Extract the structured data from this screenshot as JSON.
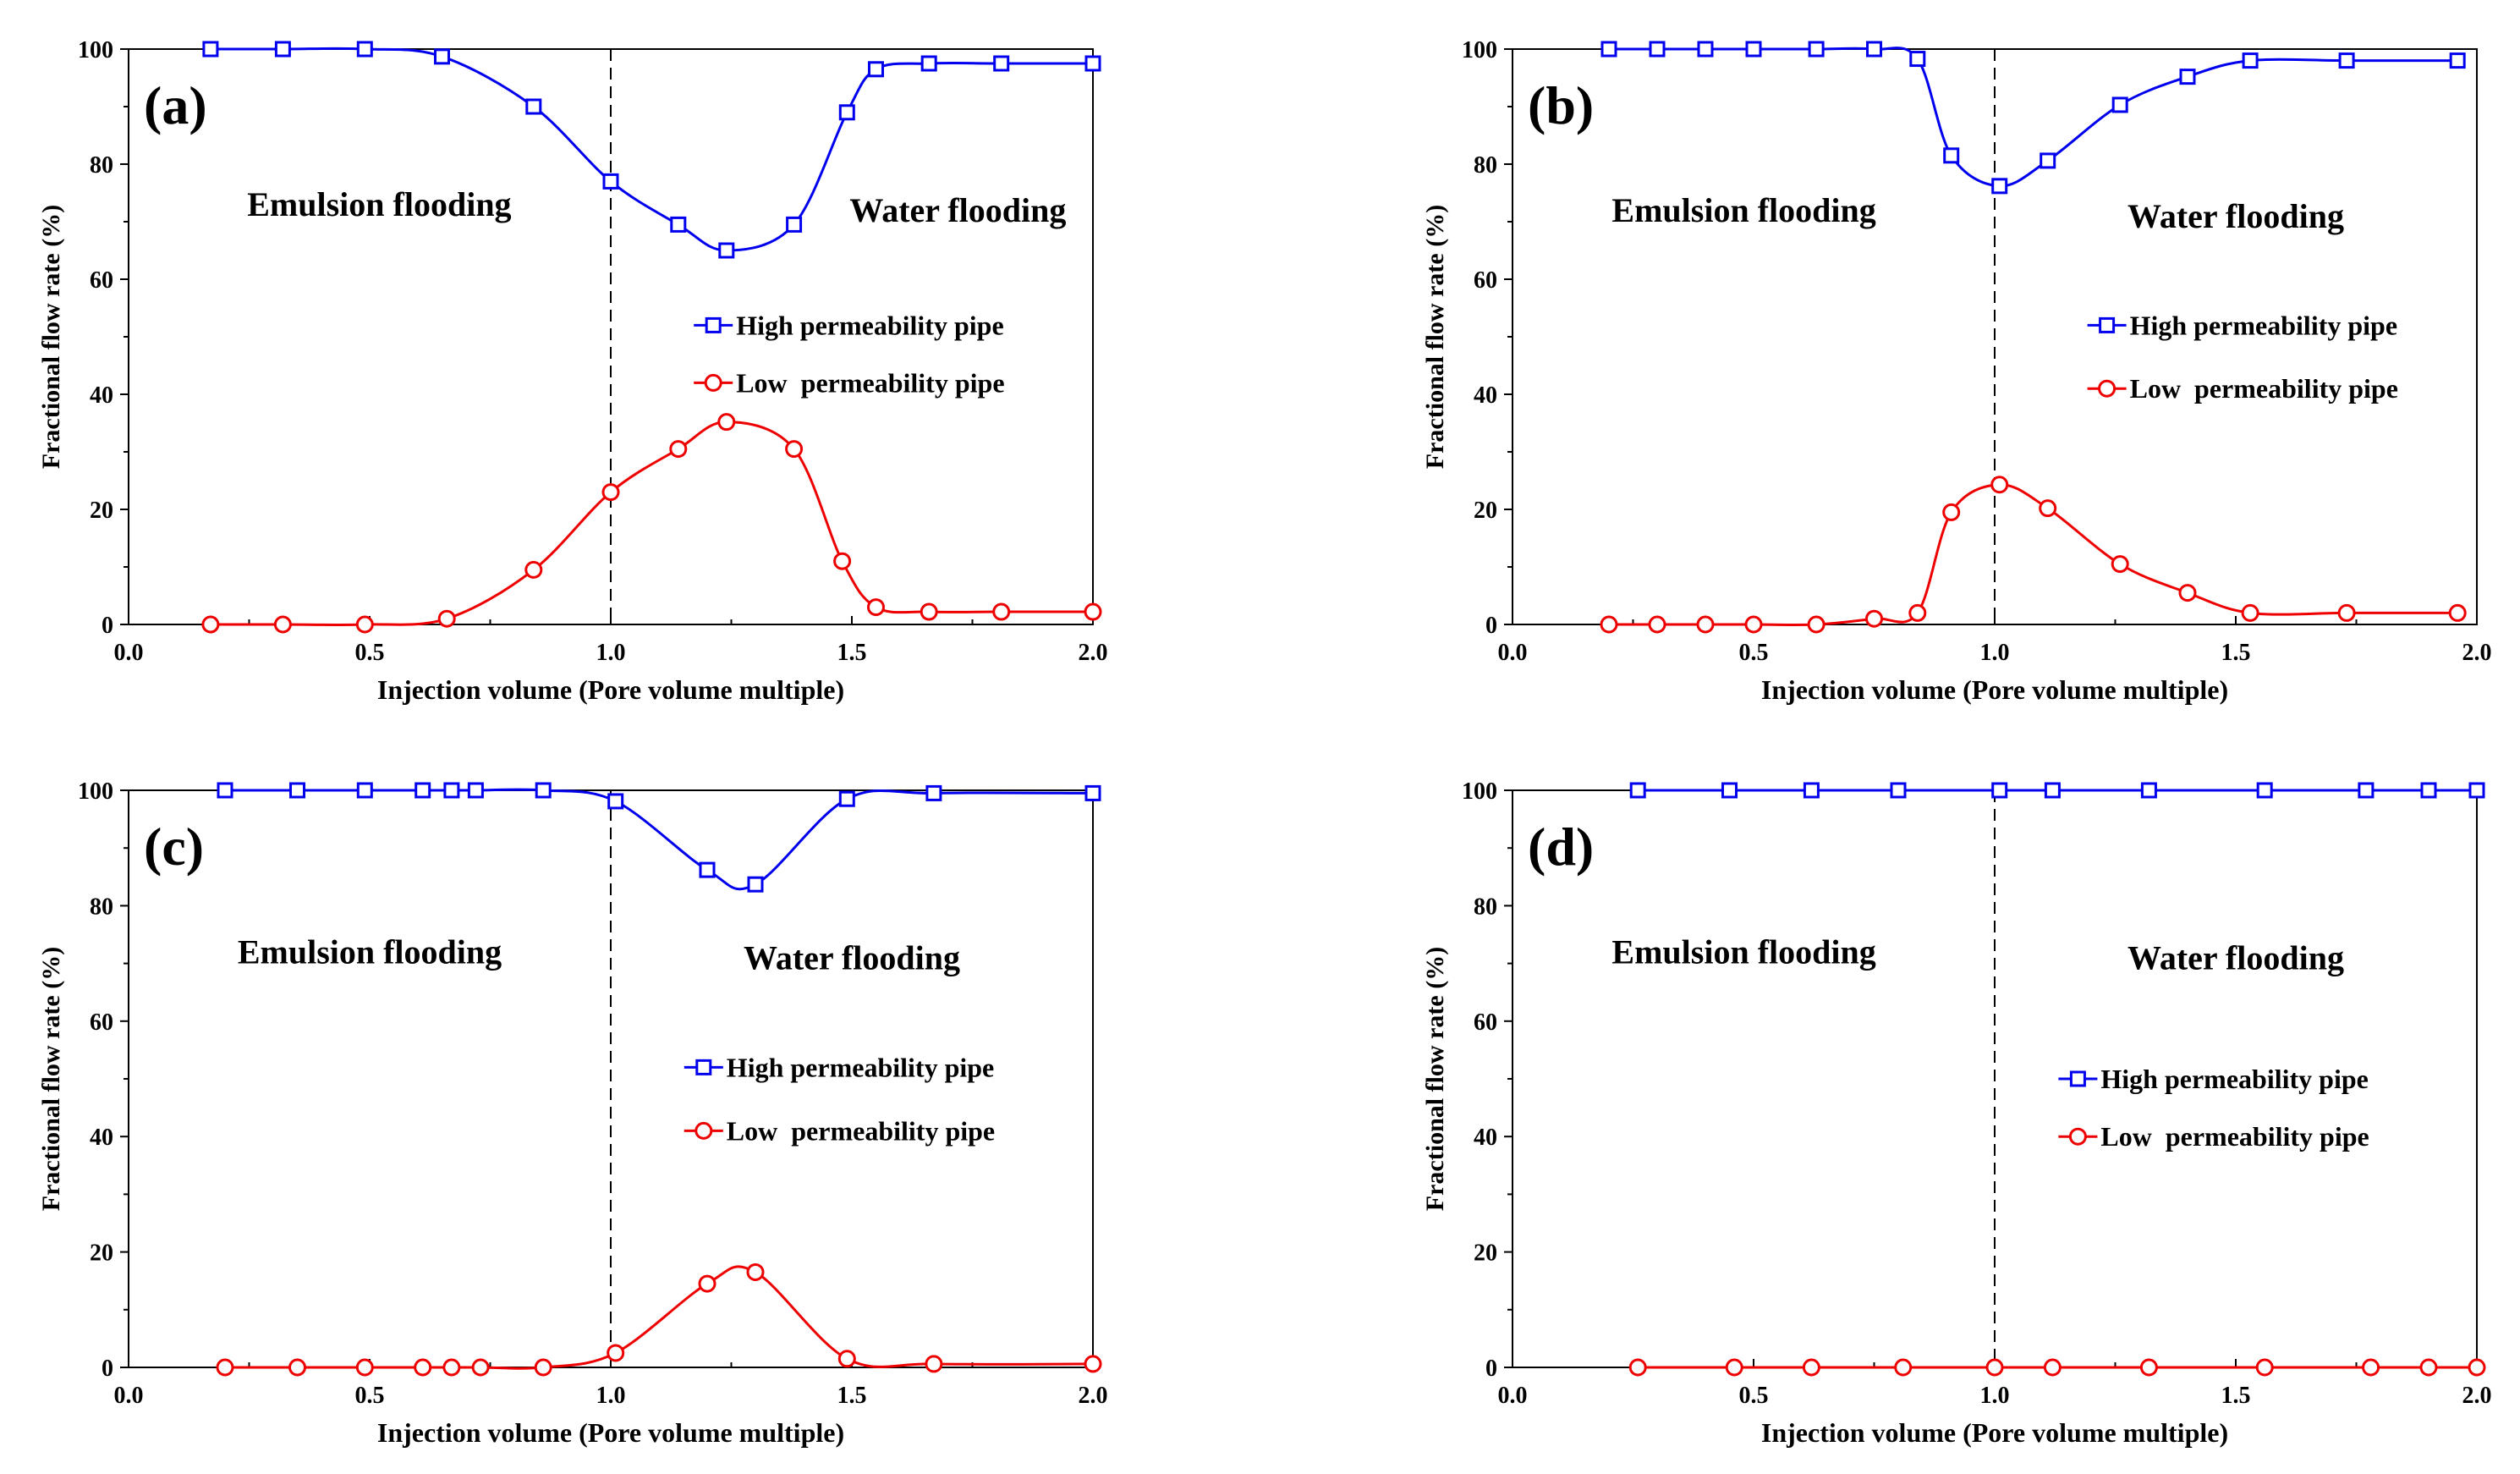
{
  "colors": {
    "high": "#0000ee",
    "low": "#ee0000",
    "axis": "#000000"
  },
  "chart_data": [
    {
      "type": "line",
      "panel_label": "(a)",
      "xlabel": "Injection volume (Pore volume multiple)",
      "ylabel": "Fractional flow rate (%)",
      "xlim": [
        0,
        2
      ],
      "ylim": [
        0,
        100
      ],
      "xticks": [
        "0.0",
        "0.5",
        "1.0",
        "1.5",
        "2.0"
      ],
      "yticks": [
        "0",
        "20",
        "40",
        "60",
        "80",
        "100"
      ],
      "divider_x": 1.0,
      "region_left": "Emulsion flooding",
      "region_right": "Water flooding",
      "legend": [
        "High permeability pipe",
        "Low  permeability pipe"
      ],
      "series": [
        {
          "name": "High permeability pipe",
          "marker": "square",
          "x": [
            0.17,
            0.32,
            0.49,
            0.65,
            0.84,
            1.0,
            1.14,
            1.24,
            1.38,
            1.49,
            1.55,
            1.66,
            1.81,
            2.0
          ],
          "y": [
            100,
            100,
            100,
            98.7,
            90,
            77,
            69.5,
            65,
            69.5,
            89,
            96.5,
            97.5,
            97.5,
            97.5
          ]
        },
        {
          "name": "Low  permeability pipe",
          "marker": "circle",
          "x": [
            0.17,
            0.32,
            0.49,
            0.66,
            0.84,
            1.0,
            1.14,
            1.24,
            1.38,
            1.48,
            1.55,
            1.66,
            1.81,
            2.0
          ],
          "y": [
            0,
            0,
            0,
            1,
            9.5,
            23,
            30.5,
            35.2,
            30.5,
            11,
            3,
            2.2,
            2.2,
            2.2
          ]
        }
      ]
    },
    {
      "type": "line",
      "panel_label": "(b)",
      "xlabel": "Injection volume (Pore volume multiple)",
      "ylabel": "Fractional flow rate (%)",
      "xlim": [
        0,
        2
      ],
      "ylim": [
        0,
        100
      ],
      "xticks": [
        "0.0",
        "0.5",
        "1.0",
        "1.5",
        "2.0"
      ],
      "yticks": [
        "0",
        "20",
        "40",
        "60",
        "80",
        "100"
      ],
      "divider_x": 1.0,
      "region_left": "Emulsion flooding",
      "region_right": "Water flooding",
      "legend": [
        "High permeability pipe",
        "Low  permeability pipe"
      ],
      "series": [
        {
          "name": "High permeability pipe",
          "marker": "square",
          "x": [
            0.2,
            0.3,
            0.4,
            0.5,
            0.63,
            0.75,
            0.84,
            0.91,
            1.01,
            1.11,
            1.26,
            1.4,
            1.53,
            1.73,
            1.96
          ],
          "y": [
            100,
            100,
            100,
            100,
            100,
            100,
            98.3,
            81.5,
            76.2,
            80.6,
            90.3,
            95.2,
            98,
            98,
            98
          ]
        },
        {
          "name": "Low  permeability pipe",
          "marker": "circle",
          "x": [
            0.2,
            0.3,
            0.4,
            0.5,
            0.63,
            0.75,
            0.84,
            0.91,
            1.01,
            1.11,
            1.26,
            1.4,
            1.53,
            1.73,
            1.96
          ],
          "y": [
            0,
            0,
            0,
            0,
            0,
            1,
            2,
            19.5,
            24.3,
            20.2,
            10.5,
            5.5,
            2,
            2,
            2
          ]
        }
      ]
    },
    {
      "type": "line",
      "panel_label": "(c)",
      "xlabel": "Injection volume (Pore volume multiple)",
      "ylabel": "Fractional flow rate (%)",
      "xlim": [
        0,
        2
      ],
      "ylim": [
        0,
        100
      ],
      "xticks": [
        "0.0",
        "0.5",
        "1.0",
        "1.5",
        "2.0"
      ],
      "yticks": [
        "0",
        "20",
        "40",
        "60",
        "80",
        "100"
      ],
      "divider_x": 1.0,
      "region_left": "Emulsion flooding",
      "region_right": "Water flooding",
      "legend": [
        "High permeability pipe",
        "Low  permeability pipe"
      ],
      "series": [
        {
          "name": "High permeability pipe",
          "marker": "square",
          "x": [
            0.2,
            0.35,
            0.49,
            0.61,
            0.67,
            0.72,
            0.86,
            1.01,
            1.2,
            1.3,
            1.49,
            1.67,
            2.0
          ],
          "y": [
            100,
            100,
            100,
            100,
            100,
            100,
            100,
            98.1,
            86.2,
            83.7,
            98.5,
            99.5,
            99.5
          ]
        },
        {
          "name": "Low  permeability pipe",
          "marker": "circle",
          "x": [
            0.2,
            0.35,
            0.49,
            0.61,
            0.67,
            0.73,
            0.86,
            1.01,
            1.2,
            1.3,
            1.49,
            1.67,
            2.0
          ],
          "y": [
            0,
            0,
            0,
            0,
            0,
            0,
            0,
            2.5,
            14.5,
            16.5,
            1.5,
            0.6,
            0.6
          ]
        }
      ]
    },
    {
      "type": "line",
      "panel_label": "(d)",
      "xlabel": "Injection volume (Pore volume multiple)",
      "ylabel": "Fractional flow rate (%)",
      "xlim": [
        0,
        2
      ],
      "ylim": [
        0,
        100
      ],
      "xticks": [
        "0.0",
        "0.5",
        "1.0",
        "1.5",
        "2.0"
      ],
      "yticks": [
        "0",
        "20",
        "40",
        "60",
        "80",
        "100"
      ],
      "divider_x": 1.0,
      "region_left": "Emulsion flooding",
      "region_right": "Water flooding",
      "legend": [
        "High permeability pipe",
        "Low  permeability pipe"
      ],
      "series": [
        {
          "name": "High permeability pipe",
          "marker": "square",
          "x": [
            0.26,
            0.45,
            0.62,
            0.8,
            1.01,
            1.12,
            1.32,
            1.56,
            1.77,
            1.9,
            2.0
          ],
          "y": [
            100,
            100,
            100,
            100,
            100,
            100,
            100,
            100,
            100,
            100,
            100
          ]
        },
        {
          "name": "Low  permeability pipe",
          "marker": "circle",
          "x": [
            0.26,
            0.46,
            0.62,
            0.81,
            1.0,
            1.12,
            1.32,
            1.56,
            1.78,
            1.9,
            2.0
          ],
          "y": [
            0,
            0,
            0,
            0,
            0,
            0,
            0,
            0,
            0,
            0,
            0
          ]
        }
      ]
    }
  ]
}
